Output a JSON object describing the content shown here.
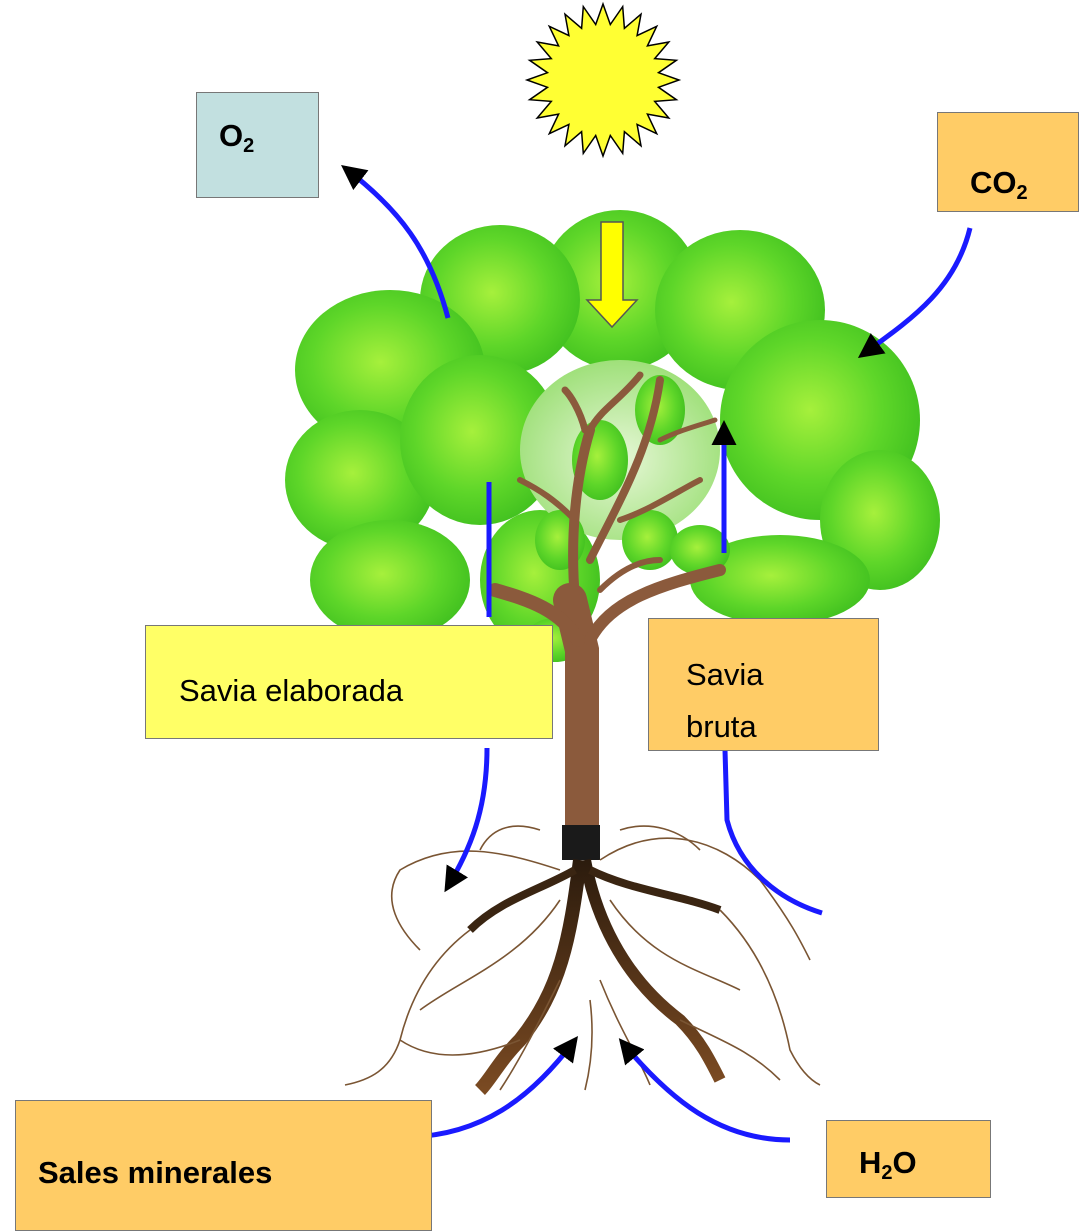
{
  "labels": {
    "o2": {
      "text": "O",
      "sub": "2"
    },
    "co2": {
      "text": "CO",
      "sub": "2"
    },
    "savia_elaborada": "Savia elaborada",
    "savia_bruta": "Savia bruta",
    "sales_minerales": "Sales minerales",
    "h2o": {
      "text": "H",
      "sub": "2",
      "tail": "O"
    }
  }
}
